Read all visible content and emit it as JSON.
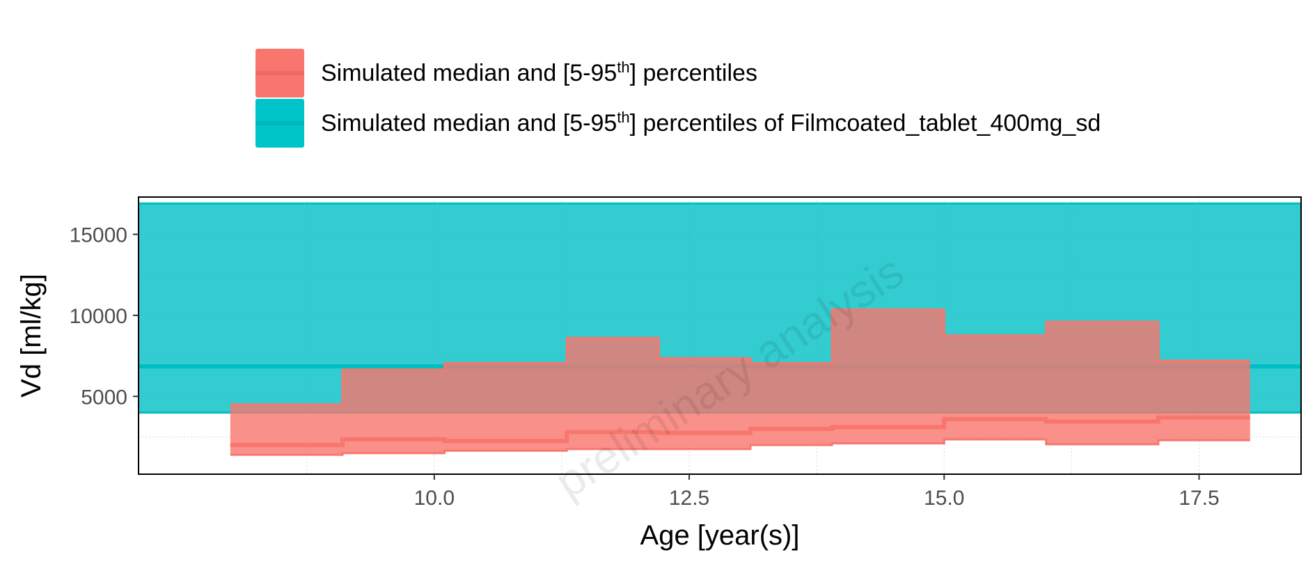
{
  "legend": {
    "items": [
      {
        "label_pre": "Simulated median and [5-95",
        "label_sup": "th",
        "label_post": "] percentiles",
        "color": "#F8766D"
      },
      {
        "label_pre": "Simulated median and [5-95",
        "label_sup": "th",
        "label_post": "] percentiles of Filmcoated_tablet_400mg_sd",
        "color": "#00BFC4"
      }
    ]
  },
  "watermark": "preliminary analysis",
  "chart_data": {
    "type": "area",
    "xlabel": "Age [year(s)]",
    "ylabel": "Vd [ml/kg]",
    "xlim": [
      7.1,
      18.5
    ],
    "ylim": [
      200,
      17300
    ],
    "xticks": [
      10.0,
      12.5,
      15.0,
      17.5
    ],
    "xtick_labels": [
      "10.0",
      "12.5",
      "15.0",
      "17.5"
    ],
    "yticks": [
      5000,
      10000,
      15000
    ],
    "ytick_labels": [
      "5000",
      "10000",
      "15000"
    ],
    "grid": true,
    "legend_position": "top",
    "series": [
      {
        "name": "Simulated median and [5-95th] percentiles of Filmcoated_tablet_400mg_sd",
        "kind": "constant_band",
        "color": "#00BFC4",
        "x_range": [
          7.1,
          18.5
        ],
        "low": 4000,
        "median": 6850,
        "high": 16900
      },
      {
        "name": "Simulated median and [5-95th] percentiles",
        "kind": "step_band",
        "color": "#F8766D",
        "x_edges": [
          8.0,
          9.1,
          10.1,
          11.3,
          12.2,
          13.1,
          13.9,
          15.0,
          16.0,
          17.1,
          18.0
        ],
        "low": [
          1400,
          1500,
          1650,
          1750,
          1750,
          2000,
          2100,
          2350,
          2050,
          2300
        ],
        "median": [
          2000,
          2350,
          2250,
          2800,
          2750,
          3000,
          3100,
          3600,
          3450,
          3700
        ],
        "high": [
          4500,
          6650,
          7050,
          8600,
          7350,
          7050,
          10350,
          8750,
          9600,
          7200
        ]
      }
    ]
  }
}
